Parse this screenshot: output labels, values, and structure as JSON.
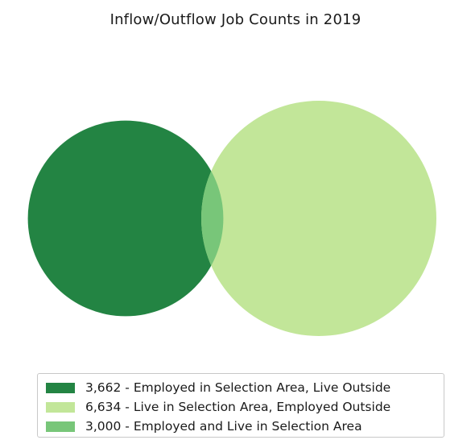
{
  "chart_data": {
    "type": "venn",
    "title": "Inflow/Outflow Job Counts in 2019",
    "sets": [
      {
        "name": "Employed in Selection Area, Live Outside",
        "value": 3662,
        "label": "3,662 - Employed in Selection Area, Live Outside",
        "color": "#238443"
      },
      {
        "name": "Live in Selection Area, Employed Outside",
        "value": 6634,
        "label": "6,634 - Live in Selection Area, Employed Outside",
        "color": "#c2e699"
      }
    ],
    "overlap": {
      "name": "Employed and Live in Selection Area",
      "value": 3000,
      "label": "3,000 - Employed and Live in Selection Area",
      "color": "#78c679"
    },
    "legend_position": "bottom"
  }
}
